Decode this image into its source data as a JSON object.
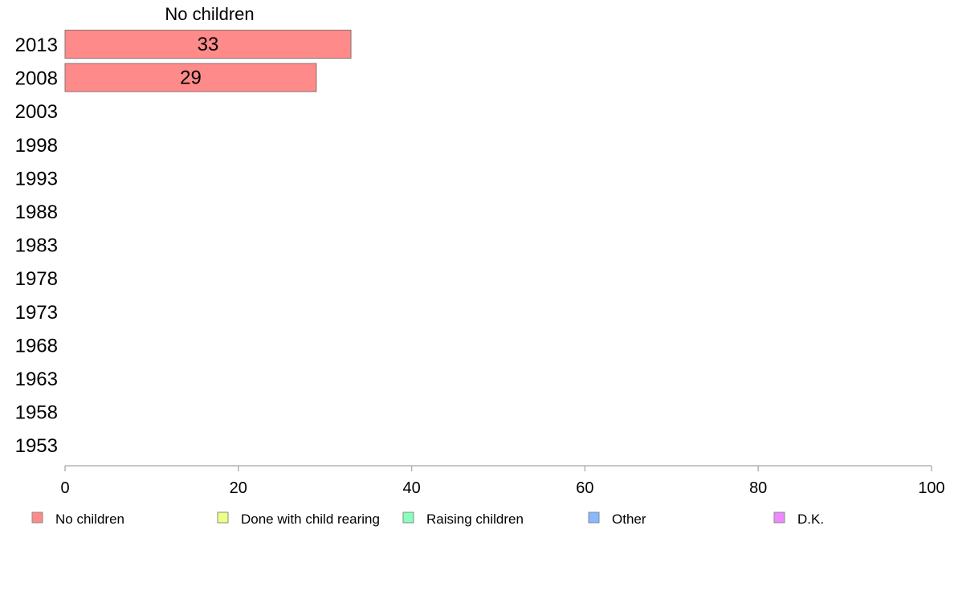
{
  "chart_data": {
    "type": "bar",
    "orientation": "horizontal",
    "stacked": true,
    "group_titles": [
      "No children"
    ],
    "categories": [
      "2013",
      "2008",
      "2003",
      "1998",
      "1993",
      "1988",
      "1983",
      "1978",
      "1973",
      "1968",
      "1963",
      "1958",
      "1953"
    ],
    "series": [
      {
        "name": "No children",
        "color": "#ff8a8a",
        "values": [
          33,
          29,
          null,
          null,
          null,
          null,
          null,
          null,
          null,
          null,
          null,
          null,
          null
        ]
      },
      {
        "name": "Done with child rearing",
        "color": "#eeff88",
        "values": [
          null,
          null,
          null,
          null,
          null,
          null,
          null,
          null,
          null,
          null,
          null,
          null,
          null
        ]
      },
      {
        "name": "Raising children",
        "color": "#88ffbb",
        "values": [
          null,
          null,
          null,
          null,
          null,
          null,
          null,
          null,
          null,
          null,
          null,
          null,
          null
        ]
      },
      {
        "name": "Other",
        "color": "#88b8ff",
        "values": [
          null,
          null,
          null,
          null,
          null,
          null,
          null,
          null,
          null,
          null,
          null,
          null,
          null
        ]
      },
      {
        "name": "D.K.",
        "color": "#ee88ff",
        "values": [
          null,
          null,
          null,
          null,
          null,
          null,
          null,
          null,
          null,
          null,
          null,
          null,
          null
        ]
      }
    ],
    "xlim": [
      0,
      100
    ],
    "xticks": [
      0,
      20,
      40,
      60,
      80,
      100
    ],
    "legend_position": "bottom",
    "grid": false
  }
}
